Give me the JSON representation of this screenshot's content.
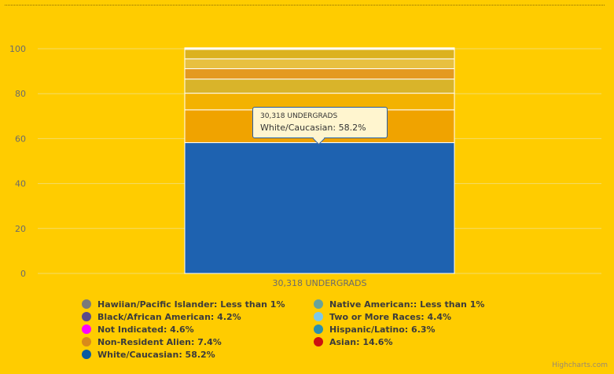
{
  "chart_data": {
    "type": "bar",
    "stacked": true,
    "categories": [
      "30,318 UNDERGRADS"
    ],
    "ylim": [
      0,
      100
    ],
    "yticks": [
      0,
      20,
      40,
      60,
      80,
      100
    ],
    "grid": true,
    "legend_position": "bottom",
    "series": [
      {
        "name": "Hawiian/Pacific Islander: Less than 1%",
        "values": [
          0.3
        ],
        "color": "#7a7a7a"
      },
      {
        "name": "Native American:: Less than 1%",
        "values": [
          0.4
        ],
        "color": "#68a39a"
      },
      {
        "name": "Black/African American: 4.2%",
        "values": [
          4.2
        ],
        "color": "#5a4a8a"
      },
      {
        "name": "Two or More Races: 4.4%",
        "values": [
          4.4
        ],
        "color": "#7ec8e8"
      },
      {
        "name": "Not Indicated: 4.6%",
        "values": [
          4.6
        ],
        "color": "#ff00ff"
      },
      {
        "name": "Hispanic/Latino: 6.3%",
        "values": [
          6.3
        ],
        "color": "#2a8fb0"
      },
      {
        "name": "Non-Resident Alien: 7.4%",
        "values": [
          7.4
        ],
        "color": "#d98a1a"
      },
      {
        "name": "Asian: 14.6%",
        "values": [
          14.6
        ],
        "color": "#cc1111"
      },
      {
        "name": "White/Caucasian: 58.2%",
        "values": [
          58.2
        ],
        "color": "#0a5aa0"
      }
    ],
    "segment_fills": [
      "#1e62b0",
      "#f0a300",
      "#f3b200",
      "#d9b42a",
      "#e49a20",
      "#e8c040",
      "#dcb21e",
      "#e8c84a",
      "#ead06a"
    ]
  },
  "tooltip": {
    "header": "30,318 UNDERGRADS",
    "body": "White/Caucasian: 58.2%"
  },
  "legend": [
    {
      "label": "Hawiian/Pacific Islander: Less than 1%",
      "color": "#7a7a7a"
    },
    {
      "label": "Native American:: Less than 1%",
      "color": "#68a39a"
    },
    {
      "label": "Black/African American: 4.2%",
      "color": "#5a4a8a"
    },
    {
      "label": "Two or More Races: 4.4%",
      "color": "#7ec8e8"
    },
    {
      "label": "Not Indicated: 4.6%",
      "color": "#ff00ff"
    },
    {
      "label": "Hispanic/Latino: 6.3%",
      "color": "#2a8fb0"
    },
    {
      "label": "Non-Resident Alien: 7.4%",
      "color": "#d98a1a"
    },
    {
      "label": "Asian: 14.6%",
      "color": "#cc1111"
    },
    {
      "label": "White/Caucasian: 58.2%",
      "color": "#0a5aa0"
    }
  ],
  "credits": "Highcharts.com"
}
